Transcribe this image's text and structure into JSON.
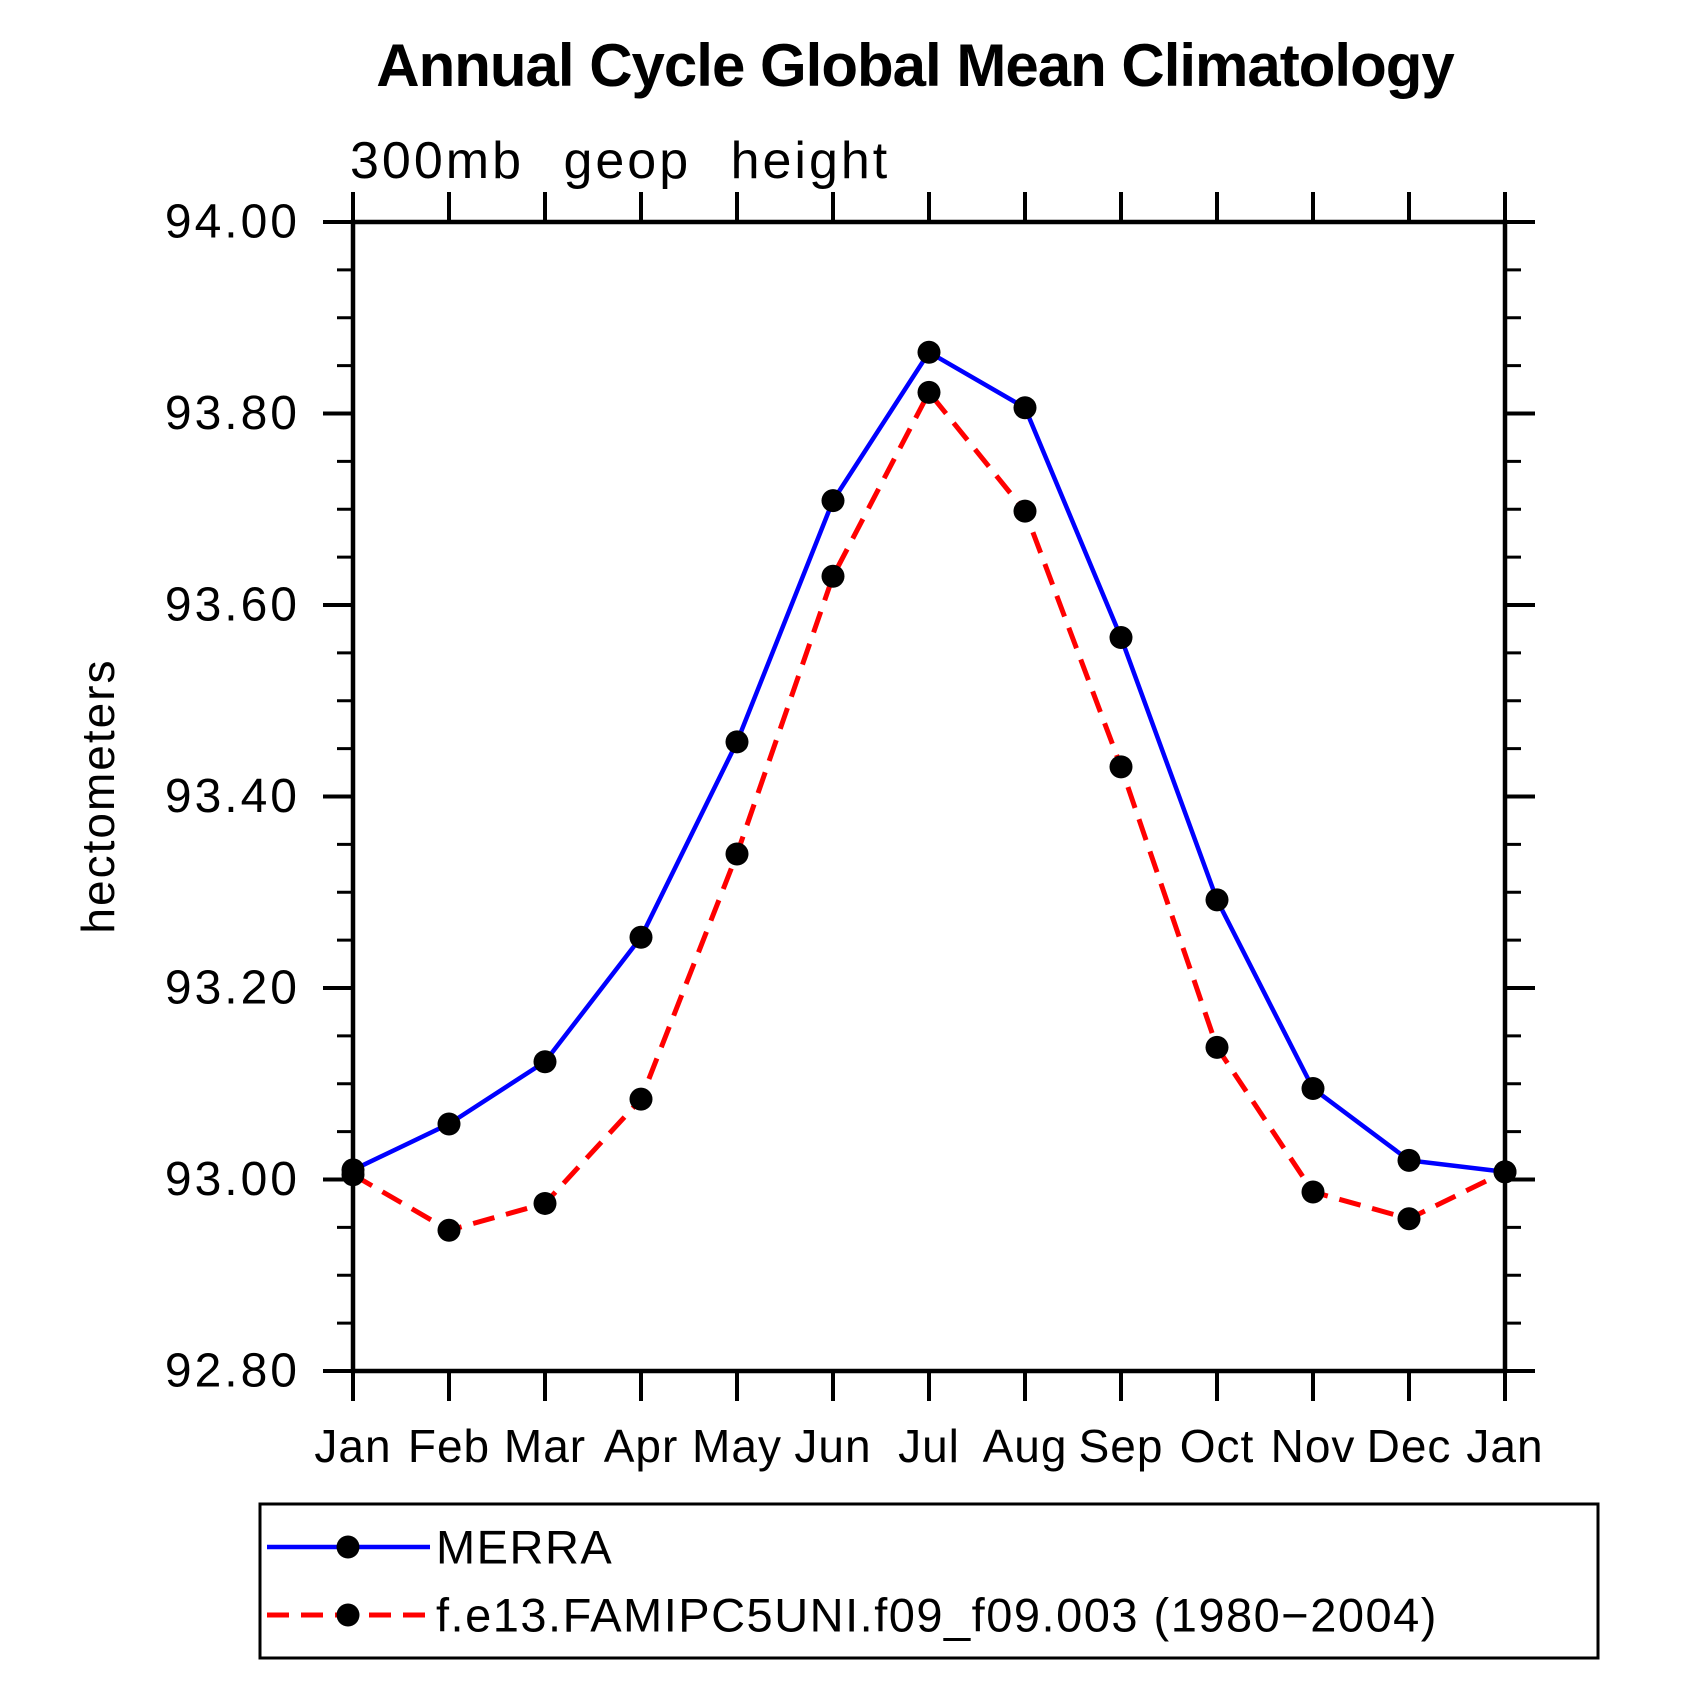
{
  "page": {
    "background_color": "#ffffff",
    "text_color": "#000000"
  },
  "chart_data": {
    "type": "line",
    "title": "Annual Cycle Global Mean Climatology",
    "subtitle": "300mb geop height",
    "xlabel": "",
    "ylabel": "hectometers",
    "categories": [
      "Jan",
      "Feb",
      "Mar",
      "Apr",
      "May",
      "Jun",
      "Jul",
      "Aug",
      "Sep",
      "Oct",
      "Nov",
      "Dec",
      "Jan"
    ],
    "ylim": [
      92.8,
      94.0
    ],
    "y_major_step": 0.2,
    "y_minor_step": 0.05,
    "y_tick_labels": [
      "92.80",
      "93.00",
      "93.20",
      "93.40",
      "93.60",
      "93.80",
      "94.00"
    ],
    "grid": false,
    "axis_color": "#000000",
    "marker": "filled-circle",
    "marker_color": "#000000",
    "legend_position": "bottom-left-box",
    "series": [
      {
        "name": "MERRA",
        "color": "#0000ff",
        "line_style": "solid",
        "values": [
          93.01,
          93.058,
          93.123,
          93.253,
          93.457,
          93.709,
          93.864,
          93.806,
          93.566,
          93.292,
          93.095,
          93.02,
          93.008
        ]
      },
      {
        "name": "f.e13.FAMIPC5UNI.f09_f09.003 (1980−2004)",
        "color": "#ff0000",
        "line_style": "dashed",
        "values": [
          93.005,
          92.947,
          92.975,
          93.084,
          93.34,
          93.63,
          93.822,
          93.698,
          93.431,
          93.138,
          92.987,
          92.959,
          93.008
        ]
      }
    ]
  }
}
